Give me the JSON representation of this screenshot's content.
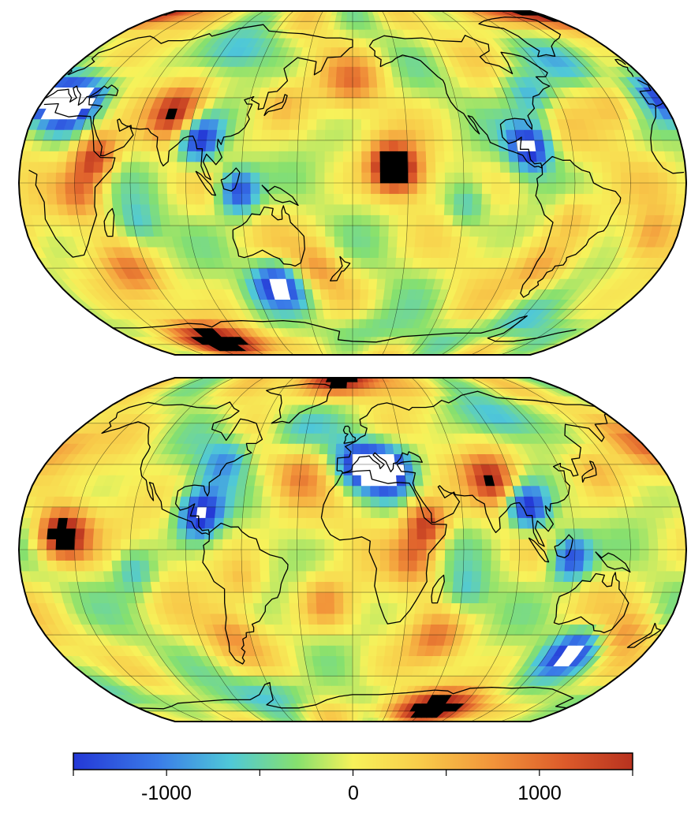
{
  "maps": [
    {
      "id": "pacific-centered",
      "central_meridian": 180
    },
    {
      "id": "atlantic-centered",
      "central_meridian": 0
    }
  ],
  "projection": "robinson",
  "graticule": true,
  "colorbar": {
    "min": -1500,
    "max": 1500,
    "colormap": "blue-cyan-green-yellow-orange-red",
    "tick_labels": [
      "-1000",
      "0",
      "1000"
    ],
    "tick_values": [
      -1000,
      0,
      1000
    ],
    "minor_tick_values": [
      -1500,
      -1000,
      -500,
      0,
      500,
      1000,
      1500
    ]
  },
  "colors": {
    "deep_negative": "#2a3fd6",
    "neutral": "#f5ef58",
    "deep_positive": "#c83a22",
    "saturated_high": "#000000",
    "saturated_low": "#ffffff"
  },
  "anomalies": [
    {
      "name": "central-pacific-high",
      "lon": -160,
      "lat": 8,
      "value": 1600
    },
    {
      "name": "central-pacific-broad-high",
      "lon": -150,
      "lat": 5,
      "value": 900
    },
    {
      "name": "east-africa-high",
      "lon": 40,
      "lat": 12,
      "value": 1500
    },
    {
      "name": "africa-rift-high",
      "lon": 33,
      "lat": -5,
      "value": 800
    },
    {
      "name": "himalaya-high",
      "lon": 80,
      "lat": 33,
      "value": 1500
    },
    {
      "name": "mediterranean-low",
      "lon": 20,
      "lat": 37,
      "value": -1600
    },
    {
      "name": "western-mediterranean-low",
      "lon": 3,
      "lat": 40,
      "value": -1300
    },
    {
      "name": "southeast-asia-low",
      "lon": 96,
      "lat": 20,
      "value": -1600
    },
    {
      "name": "indonesia-low",
      "lon": 118,
      "lat": -4,
      "value": -1550
    },
    {
      "name": "southern-ocean-low",
      "lon": 135,
      "lat": -48,
      "value": -1600
    },
    {
      "name": "caribbean-low",
      "lon": -83,
      "lat": 17,
      "value": -1600
    },
    {
      "name": "east-antarctica-high",
      "lon": 70,
      "lat": -78,
      "value": 1700
    },
    {
      "name": "arctic-high",
      "lon": -10,
      "lat": 87,
      "value": 1700
    },
    {
      "name": "northeast-us-low",
      "lon": -75,
      "lat": 42,
      "value": -900
    },
    {
      "name": "eastern-pacific-low",
      "lon": -118,
      "lat": -10,
      "value": -700
    },
    {
      "name": "north-atlantic-high",
      "lon": -30,
      "lat": 35,
      "value": 600
    },
    {
      "name": "south-atlantic-high",
      "lon": -15,
      "lat": -25,
      "value": 700
    },
    {
      "name": "southwest-indian-high",
      "lon": 50,
      "lat": -42,
      "value": 800
    },
    {
      "name": "southeast-pacific-high",
      "lon": -70,
      "lat": -40,
      "value": 600
    },
    {
      "name": "western-indian-ocean-low",
      "lon": 62,
      "lat": -20,
      "value": -600
    },
    {
      "name": "tasman-sea-high",
      "lon": 160,
      "lat": -40,
      "value": 600
    },
    {
      "name": "north-pacific-high",
      "lon": 180,
      "lat": 48,
      "value": 700
    },
    {
      "name": "south-america-high",
      "lon": -60,
      "lat": -15,
      "value": 500
    },
    {
      "name": "antarctic-peninsula-low",
      "lon": -60,
      "lat": -68,
      "value": -700
    },
    {
      "name": "ross-sea-low",
      "lon": -170,
      "lat": -70,
      "value": -500
    },
    {
      "name": "siberia-low",
      "lon": 100,
      "lat": 62,
      "value": -700
    },
    {
      "name": "north-atlantic-low",
      "lon": -40,
      "lat": 57,
      "value": -600
    },
    {
      "name": "japan-high",
      "lon": 140,
      "lat": 38,
      "value": 500
    }
  ]
}
